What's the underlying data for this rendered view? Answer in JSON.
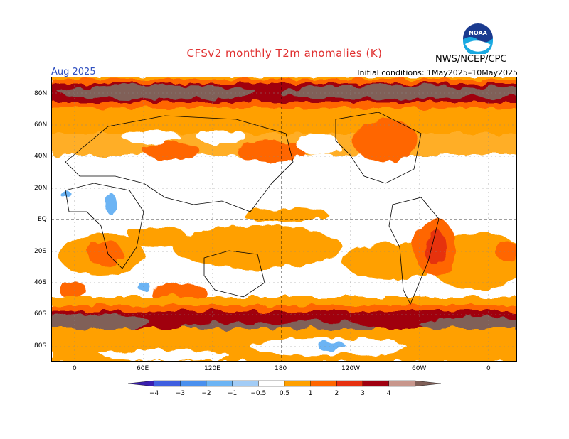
{
  "title": "CFSv2 monthly T2m anomalies (K)",
  "organization": "NWS/NCEP/CPC",
  "logo_text": "NOAA",
  "period": "Aug 2025",
  "initial_conditions": "Initial conditions: 1May2025–10May2025",
  "map": {
    "lat_labels": [
      "80N",
      "60N",
      "40N",
      "20N",
      "EQ",
      "20S",
      "40S",
      "60S",
      "80S"
    ],
    "lon_labels": [
      "0",
      "60E",
      "120E",
      "180",
      "120W",
      "60W",
      "0"
    ]
  },
  "colorbar": {
    "tick_labels": [
      "-4",
      "-3",
      "-2",
      "-1",
      "-0.5",
      "0.5",
      "1",
      "2",
      "3",
      "4"
    ],
    "colors": [
      "#3a1fb0",
      "#3f5fe0",
      "#4a90ee",
      "#6cb4f4",
      "#a2ccf6",
      "#ffffff",
      "#ffa000",
      "#ff6600",
      "#e63010",
      "#a00010",
      "#c8968c",
      "#806058"
    ]
  }
}
